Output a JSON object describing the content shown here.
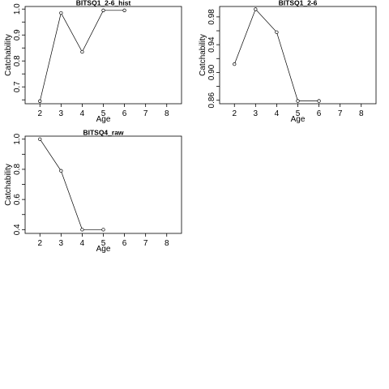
{
  "chart_data": [
    {
      "type": "line",
      "title": "BITSQ1_2-6_hist",
      "xlabel": "Age",
      "ylabel": "Catchability",
      "xlim": [
        1.3,
        8.7
      ],
      "ylim": [
        0.635,
        1.01
      ],
      "xticks": [
        "2",
        "3",
        "4",
        "5",
        "6",
        "7",
        "8"
      ],
      "yticks": [
        "0.7",
        "0.8",
        "0.9",
        "1.0"
      ],
      "x": [
        2,
        3,
        4,
        5,
        6
      ],
      "y": [
        0.645,
        0.985,
        0.835,
        0.995,
        0.995
      ],
      "grid": false
    },
    {
      "type": "line",
      "title": "BITSQ1_2-6",
      "xlabel": "Age",
      "ylabel": "Catchability",
      "xlim": [
        1.3,
        8.7
      ],
      "ylim": [
        0.855,
        0.995
      ],
      "xticks": [
        "2",
        "3",
        "4",
        "5",
        "6",
        "7",
        "8"
      ],
      "yticks": [
        "0.86",
        "0.90",
        "0.94",
        "0.98"
      ],
      "x": [
        2,
        3,
        4,
        5,
        6
      ],
      "y": [
        0.912,
        0.991,
        0.958,
        0.859,
        0.859
      ],
      "grid": false
    },
    {
      "type": "line",
      "title": "BITSQ4_raw",
      "xlabel": "Age",
      "ylabel": "Catchability",
      "xlim": [
        1.3,
        8.7
      ],
      "ylim": [
        0.375,
        1.02
      ],
      "xticks": [
        "2",
        "3",
        "4",
        "5",
        "6",
        "7",
        "8"
      ],
      "yticks": [
        "0.4",
        "0.6",
        "0.8",
        "1.0"
      ],
      "x": [
        2,
        3,
        4,
        5
      ],
      "y": [
        1.0,
        0.79,
        0.4,
        0.4
      ],
      "grid": false
    }
  ]
}
